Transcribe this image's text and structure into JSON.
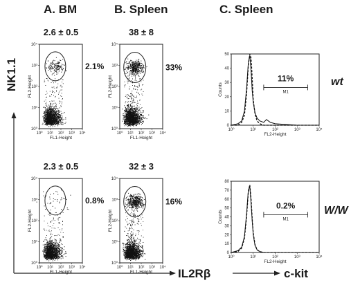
{
  "headers": {
    "a": "A. BM",
    "b": "B. Spleen",
    "c": "C. Spleen"
  },
  "y_axis_big_label": "NK1.1",
  "x_axis_big_label": "IL2Rβ",
  "ckit_label": "c-kit",
  "genotypes": {
    "top": "wt",
    "bottom": "W/W"
  },
  "dot_tick_labels": [
    "10⁰",
    "10¹",
    "10²",
    "10³",
    "10⁴"
  ],
  "dot_xlabel": "FL1-Height",
  "dot_ylabel": "FL2-Height",
  "hist_xlabel": "FL2-Height",
  "hist_ylabel": "Counts",
  "hist_x_ticks": [
    "10⁰",
    "10¹",
    "10²",
    "10³",
    "10⁴"
  ],
  "hist_gate_label": "M1",
  "chart_data": [
    {
      "type": "scatter",
      "panel": "A. BM",
      "row": "wt",
      "title": "2.6 ± 0.5",
      "gate_percent": "2.1%",
      "xlabel": "FL1-Height",
      "ylabel": "FL2-Height",
      "xlim": [
        1,
        10000
      ],
      "ylim": [
        1,
        10000
      ],
      "log_scale": true,
      "populations": [
        {
          "name": "",
          "center": [
            8,
            8
          ],
          "density": "high"
        },
        {
          "name": "",
          "center": [
            30,
            900
          ],
          "density": "medium"
        }
      ]
    },
    {
      "type": "scatter",
      "panel": "B. Spleen",
      "row": "wt",
      "title": "38 ± 8",
      "gate_percent": "33%",
      "xlabel": "FL1-Height",
      "ylabel": "FL2-Height",
      "xlim": [
        1,
        10000
      ],
      "ylim": [
        1,
        10000
      ],
      "log_scale": true,
      "populations": [
        {
          "name": "",
          "center": [
            8,
            8
          ],
          "density": "high"
        },
        {
          "name": "",
          "center": [
            25,
            800
          ],
          "density": "high"
        }
      ]
    },
    {
      "type": "line",
      "panel": "C. Spleen",
      "row": "wt",
      "gate_percent": "11%",
      "gate_label": "M1",
      "xlabel": "FL2-Height",
      "ylabel": "Counts",
      "xlim": [
        1,
        10000
      ],
      "ylim": [
        0,
        50
      ],
      "log_scale_x": true,
      "y_ticks": [
        0,
        10,
        20,
        30,
        40,
        50
      ],
      "gate_range": [
        30,
        3000
      ],
      "series": [
        {
          "name": "",
          "style": "solid",
          "x": [
            1,
            2,
            3,
            4,
            5,
            6,
            7,
            8,
            9,
            10,
            12,
            15,
            20,
            30,
            40,
            60,
            100,
            1000,
            10000
          ],
          "values": [
            0,
            1,
            3,
            10,
            26,
            44,
            49,
            38,
            24,
            16,
            9,
            5,
            3,
            2,
            4,
            2,
            1,
            0,
            0
          ]
        },
        {
          "name": "",
          "style": "dashed",
          "x": [
            1,
            2,
            3,
            4,
            5,
            6,
            7,
            8,
            9,
            10,
            12,
            15,
            20,
            30,
            100,
            10000
          ],
          "values": [
            0,
            0,
            2,
            7,
            22,
            42,
            51,
            47,
            33,
            18,
            8,
            3,
            1,
            0,
            0,
            0
          ]
        }
      ]
    },
    {
      "type": "scatter",
      "panel": "A. BM",
      "row": "W/W",
      "title": "2.3 ± 0.5",
      "gate_percent": "0.8%",
      "xlabel": "FL1-Height",
      "ylabel": "FL2-Height",
      "xlim": [
        1,
        10000
      ],
      "ylim": [
        1,
        10000
      ],
      "log_scale": true,
      "populations": [
        {
          "name": "",
          "center": [
            8,
            8
          ],
          "density": "high"
        },
        {
          "name": "",
          "center": [
            30,
            900
          ],
          "density": "low"
        }
      ]
    },
    {
      "type": "scatter",
      "panel": "B. Spleen",
      "row": "W/W",
      "title": "32 ± 3",
      "gate_percent": "16%",
      "xlabel": "FL1-Height",
      "ylabel": "FL2-Height",
      "xlim": [
        1,
        10000
      ],
      "ylim": [
        1,
        10000
      ],
      "log_scale": true,
      "populations": [
        {
          "name": "",
          "center": [
            8,
            8
          ],
          "density": "high"
        },
        {
          "name": "",
          "center": [
            25,
            800
          ],
          "density": "high"
        }
      ]
    },
    {
      "type": "line",
      "panel": "C. Spleen",
      "row": "W/W",
      "gate_percent": "0.2%",
      "gate_label": "M1",
      "xlabel": "FL2-Height",
      "ylabel": "Counts",
      "xlim": [
        1,
        10000
      ],
      "ylim": [
        0,
        80
      ],
      "log_scale_x": true,
      "y_ticks": [
        0,
        10,
        20,
        30,
        40,
        50,
        60,
        70,
        80
      ],
      "gate_range": [
        30,
        3000
      ],
      "series": [
        {
          "name": "",
          "style": "solid",
          "x": [
            1,
            2,
            3,
            4,
            5,
            6,
            7,
            8,
            9,
            10,
            12,
            15,
            20,
            30,
            100,
            10000
          ],
          "values": [
            0,
            2,
            6,
            18,
            44,
            70,
            74,
            55,
            35,
            20,
            8,
            3,
            1,
            0,
            0,
            0
          ]
        },
        {
          "name": "",
          "style": "dashed",
          "x": [
            1,
            2,
            3,
            4,
            5,
            6,
            7,
            8,
            9,
            10,
            12,
            15,
            20,
            30,
            100,
            10000
          ],
          "values": [
            0,
            1,
            5,
            16,
            40,
            68,
            76,
            60,
            38,
            22,
            9,
            3,
            1,
            0,
            0,
            0
          ]
        }
      ]
    }
  ]
}
